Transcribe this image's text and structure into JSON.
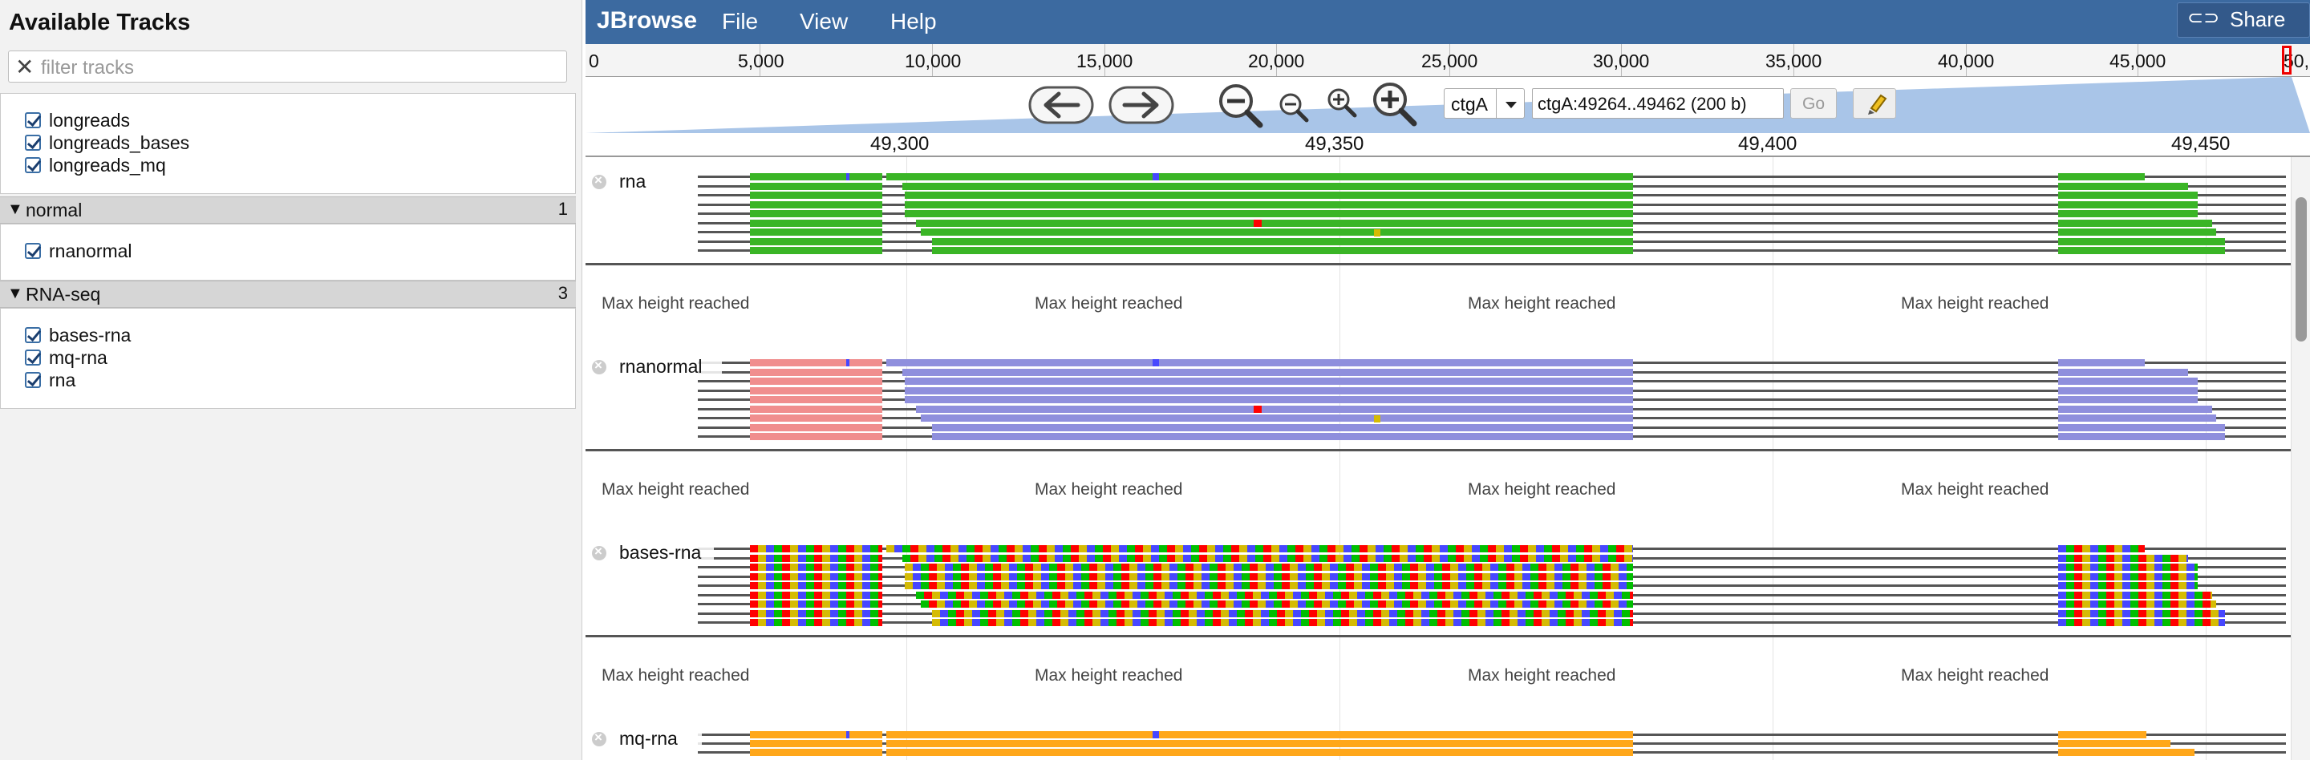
{
  "sidebar": {
    "title": "Available Tracks",
    "filter_placeholder": "filter tracks",
    "ungrouped": [
      "longreads",
      "longreads_bases",
      "longreads_mq"
    ],
    "groups": [
      {
        "name": "normal",
        "count": "1",
        "tracks": [
          "rnanormal"
        ]
      },
      {
        "name": "RNA-seq",
        "count": "3",
        "tracks": [
          "bases-rna",
          "mq-rna",
          "rna"
        ]
      }
    ]
  },
  "topbar": {
    "brand": "JBrowse",
    "menu": [
      "File",
      "View",
      "Help"
    ],
    "share_label": "Share"
  },
  "overview": {
    "labels": [
      "0",
      "5,000",
      "10,000",
      "15,000",
      "20,000",
      "25,000",
      "30,000",
      "35,000",
      "40,000",
      "45,000",
      "50,"
    ]
  },
  "nav": {
    "ref": "ctgA",
    "location": "ctgA:49264..49462 (200 b)",
    "go": "Go"
  },
  "scale": {
    "labels": [
      "49,300",
      "49,350",
      "49,400",
      "49,450"
    ]
  },
  "tracks": [
    {
      "label": "rna",
      "type": "green"
    },
    {
      "label": "rnanormal",
      "type": "pair"
    },
    {
      "label": "bases-rna",
      "type": "bases"
    },
    {
      "label": "mq-rna",
      "type": "orange"
    }
  ],
  "max_height_text": "Max height reached",
  "colors": {
    "topbar": "#3c6aa0",
    "read_green": "#3ab526",
    "read_salmon": "#f08e8e",
    "read_lavender": "#8f8fdd",
    "read_orange": "#ffa71a",
    "base_a": "#00bf00",
    "base_c": "#4747ff",
    "base_g": "#d5bb04",
    "base_t": "#ff0000"
  },
  "icons": [
    "close-filter-icon",
    "pan-left-icon",
    "pan-right-icon",
    "zoom-out-big-icon",
    "zoom-out-small-icon",
    "zoom-in-small-icon",
    "zoom-in-big-icon",
    "highlight-icon",
    "share-link-icon",
    "dropdown-arrow-icon",
    "track-close-icon"
  ]
}
